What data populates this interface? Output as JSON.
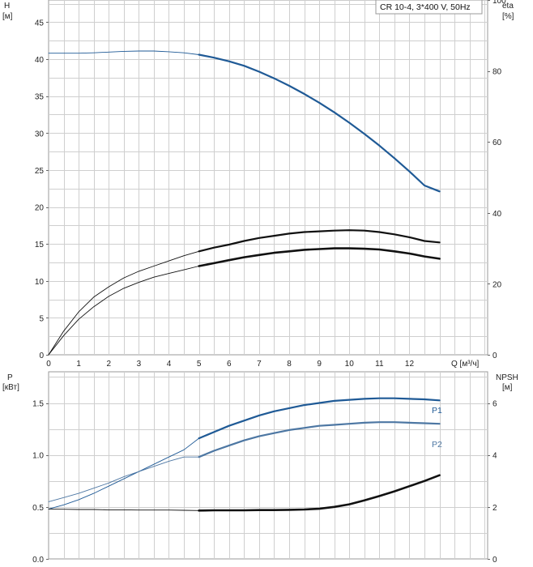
{
  "legend_title": "CR 10-4, 3*400 V, 50Hz",
  "colors": {
    "blue": "#1f5a96",
    "blue_light": "#4d77a3",
    "black": "#111111",
    "grid": "#cfcfcf"
  },
  "chart_data": [
    {
      "type": "line",
      "name": "upper",
      "left_axis": {
        "label": "H",
        "unit": "[м]",
        "ylim": [
          0,
          48
        ],
        "ticks": [
          0,
          5,
          10,
          15,
          20,
          25,
          30,
          35,
          40,
          45
        ]
      },
      "right_axis": {
        "label": "eta",
        "unit": "[%]",
        "ylim": [
          0,
          100
        ],
        "ticks": [
          0,
          20,
          40,
          60,
          80,
          100
        ]
      },
      "x_axis": {
        "label": "Q [м³/ч]",
        "xlim": [
          0,
          14.6
        ],
        "ticks": [
          0,
          1,
          2,
          3,
          4,
          5,
          6,
          7,
          8,
          9,
          10,
          11,
          12
        ]
      },
      "grid": true,
      "series": [
        {
          "axis": "left",
          "color": "blue",
          "bold_from": 5,
          "x": [
            0,
            0.5,
            1,
            1.5,
            2,
            2.5,
            3,
            3.5,
            4,
            4.5,
            5,
            5.5,
            6,
            6.5,
            7,
            7.5,
            8,
            8.5,
            9,
            9.5,
            10,
            10.5,
            11,
            11.5,
            12,
            12.5,
            13
          ],
          "y": [
            40.8,
            40.8,
            40.8,
            40.85,
            40.95,
            41.05,
            41.1,
            41.1,
            41.0,
            40.85,
            40.6,
            40.2,
            39.7,
            39.1,
            38.3,
            37.4,
            36.4,
            35.3,
            34.1,
            32.8,
            31.4,
            29.9,
            28.3,
            26.6,
            24.8,
            22.9,
            22.1
          ]
        },
        {
          "axis": "left",
          "color": "black",
          "bold_from": 5,
          "x": [
            0,
            0.5,
            1,
            1.5,
            2,
            2.5,
            3,
            3.5,
            4,
            4.5,
            5,
            5.5,
            6,
            6.5,
            7,
            7.5,
            8,
            8.5,
            9,
            9.5,
            10,
            10.5,
            11,
            11.5,
            12,
            12.5,
            13
          ],
          "y": [
            0,
            3.2,
            5.8,
            7.8,
            9.2,
            10.4,
            11.3,
            12.0,
            12.7,
            13.4,
            14.0,
            14.5,
            14.9,
            15.4,
            15.8,
            16.1,
            16.4,
            16.6,
            16.7,
            16.8,
            16.85,
            16.8,
            16.6,
            16.3,
            15.9,
            15.4,
            15.2
          ]
        },
        {
          "axis": "left",
          "color": "black",
          "bold_from": 5,
          "heavy": true,
          "x": [
            0,
            0.5,
            1,
            1.5,
            2,
            2.5,
            3,
            3.5,
            4,
            4.5,
            5,
            5.5,
            6,
            6.5,
            7,
            7.5,
            8,
            8.5,
            9,
            9.5,
            10,
            10.5,
            11,
            11.5,
            12,
            12.5,
            13
          ],
          "y": [
            0,
            2.6,
            4.8,
            6.5,
            7.9,
            9.0,
            9.8,
            10.5,
            11.0,
            11.5,
            12.0,
            12.4,
            12.8,
            13.2,
            13.5,
            13.8,
            14.0,
            14.2,
            14.3,
            14.4,
            14.4,
            14.35,
            14.25,
            14.0,
            13.7,
            13.3,
            13.0
          ]
        }
      ]
    },
    {
      "type": "line",
      "name": "lower",
      "left_axis": {
        "label": "P",
        "unit": "[кВт]",
        "ylim": [
          0,
          1.8
        ],
        "ticks": [
          "0.0",
          "0.5",
          "1.0",
          "1.5"
        ]
      },
      "right_axis": {
        "label": "NPSH",
        "unit": "[м]",
        "ylim": [
          0,
          7.2
        ],
        "ticks": [
          0,
          2,
          4,
          6
        ]
      },
      "x_axis": {
        "xlim": [
          0,
          14.6
        ]
      },
      "grid": true,
      "series": [
        {
          "axis": "left",
          "name": "P1",
          "color": "blue",
          "bold_from": 5,
          "x": [
            0,
            0.5,
            1,
            1.5,
            2,
            2.5,
            3,
            3.5,
            4,
            4.5,
            5,
            5.5,
            6,
            6.5,
            7,
            7.5,
            8,
            8.5,
            9,
            9.5,
            10,
            10.5,
            11,
            11.5,
            12,
            12.5,
            13
          ],
          "y": [
            0.48,
            0.52,
            0.57,
            0.63,
            0.7,
            0.77,
            0.84,
            0.91,
            0.98,
            1.05,
            1.16,
            1.22,
            1.28,
            1.33,
            1.38,
            1.42,
            1.45,
            1.48,
            1.5,
            1.52,
            1.53,
            1.54,
            1.545,
            1.545,
            1.54,
            1.535,
            1.525
          ]
        },
        {
          "axis": "left",
          "name": "P2",
          "color": "blue_light",
          "bold_from": 5,
          "x": [
            0,
            0.5,
            1,
            1.5,
            2,
            2.5,
            3,
            3.5,
            4,
            4.5,
            5,
            5.5,
            6,
            6.5,
            7,
            7.5,
            8,
            8.5,
            9,
            9.5,
            10,
            10.5,
            11,
            11.5,
            12,
            12.5,
            13
          ],
          "y": [
            0.55,
            0.59,
            0.63,
            0.68,
            0.73,
            0.79,
            0.84,
            0.89,
            0.94,
            0.98,
            0.98,
            1.04,
            1.09,
            1.14,
            1.18,
            1.21,
            1.24,
            1.26,
            1.28,
            1.29,
            1.3,
            1.31,
            1.315,
            1.315,
            1.31,
            1.305,
            1.3
          ]
        },
        {
          "axis": "right",
          "color": "black",
          "bold_from": 5,
          "heavy": true,
          "x": [
            0,
            0.5,
            1,
            1.5,
            2,
            2.5,
            3,
            3.5,
            4,
            4.5,
            5,
            5.5,
            6,
            6.5,
            7,
            7.5,
            8,
            8.5,
            9,
            9.5,
            10,
            10.5,
            11,
            11.5,
            12,
            12.5,
            13
          ],
          "y": [
            1.92,
            1.91,
            1.9,
            1.9,
            1.89,
            1.89,
            1.88,
            1.88,
            1.88,
            1.87,
            1.86,
            1.87,
            1.87,
            1.87,
            1.88,
            1.88,
            1.89,
            1.9,
            1.93,
            2.0,
            2.1,
            2.25,
            2.42,
            2.6,
            2.8,
            3.0,
            3.22
          ]
        }
      ]
    }
  ],
  "series_labels": {
    "p1": "P1",
    "p2": "P2"
  }
}
